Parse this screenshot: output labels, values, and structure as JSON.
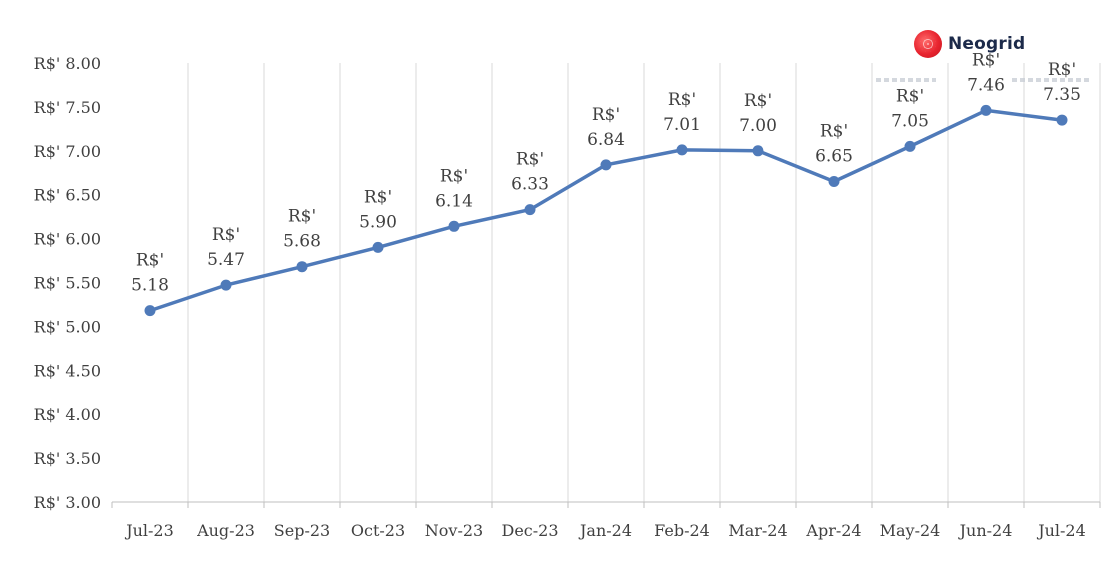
{
  "chart_data": {
    "type": "line",
    "categories": [
      "Jul-23",
      "Aug-23",
      "Sep-23",
      "Oct-23",
      "Nov-23",
      "Dec-23",
      "Jan-24",
      "Feb-24",
      "Mar-24",
      "Apr-24",
      "May-24",
      "Jun-24",
      "Jul-24"
    ],
    "series": [
      {
        "values": [
          5.18,
          5.47,
          5.68,
          5.9,
          6.14,
          6.33,
          6.84,
          7.01,
          7.0,
          6.65,
          7.05,
          7.46,
          7.35
        ],
        "color": "#4f7ab9"
      }
    ],
    "data_labels": [
      "R$'\n5.18",
      "R$'\n5.47",
      "R$'\n5.68",
      "R$'\n5.90",
      "R$'\n6.14",
      "R$'\n6.33",
      "R$'\n6.84",
      "R$'\n7.01",
      "R$'\n7.00",
      "R$'\n6.65",
      "R$'\n7.05",
      "R$'\n7.46",
      "R$'\n7.35"
    ],
    "y_ticks": [
      "R$' 3.00",
      "R$' 3.50",
      "R$' 4.00",
      "R$' 4.50",
      "R$' 5.00",
      "R$' 5.50",
      "R$' 6.00",
      "R$' 6.50",
      "R$' 7.00",
      "R$' 7.50",
      "R$' 8.00"
    ],
    "ylim": [
      3.0,
      8.0
    ],
    "y_step": 0.5,
    "title": "",
    "xlabel": "",
    "ylabel": "",
    "grid": "vertical",
    "gridline_color": "#d9d9d9",
    "axis_color": "#bfbfbf"
  },
  "logo": {
    "text": "Neogrid",
    "color": "#e8242f"
  }
}
